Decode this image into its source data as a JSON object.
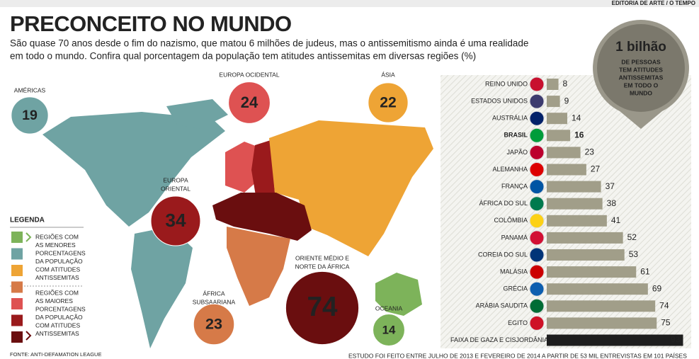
{
  "header": {
    "credit": "EDITORIA DE ARTE / O TEMPO",
    "title": "PRECONCEITO NO MUNDO",
    "subtitle": [
      "São quase 70 anos desde o fim do nazismo, que matou 6 milhões de judeus, mas o antissemitismo ainda é uma realidade",
      "em todo o mundo. Confira qual porcentagem da população tem atitudes antissemitas em diversas regiões (%)"
    ]
  },
  "regions": [
    {
      "name": [
        "AMÉRICAS"
      ],
      "value": 19,
      "color": "#6fa3a3"
    },
    {
      "name": [
        "EUROPA OCIDENTAL"
      ],
      "value": 24,
      "color": "#de5252"
    },
    {
      "name": [
        "ÁSIA"
      ],
      "value": 22,
      "color": "#eea435"
    },
    {
      "name": [
        "EUROPA",
        "ORIENTAL"
      ],
      "value": 34,
      "color": "#9a1a1c"
    },
    {
      "name": [
        "ORIENTE MÉDIO E",
        "NORTE DA ÁFRICA"
      ],
      "value": 74,
      "color": "#6a0e0f"
    },
    {
      "name": [
        "ÁFRICA",
        "SUBSAARIANA"
      ],
      "value": 23,
      "color": "#d67a48"
    },
    {
      "name": [
        "OCEANIA"
      ],
      "value": 14,
      "color": "#7db35a"
    }
  ],
  "callout": {
    "headline": "1 bilhão",
    "text": [
      "DE PESSOAS",
      "TEM ATITUDES",
      "ANTISSEMITAS",
      "EM TODO O",
      "MUNDO"
    ]
  },
  "legend": {
    "title": "LEGENDA",
    "colors": [
      "#7db35a",
      "#6fa3a3",
      "#eea435",
      "#d67a48",
      "#de5252",
      "#9a1a1c",
      "#6a0e0f"
    ],
    "groups": [
      [
        "REGIÕES COM",
        "AS MENORES",
        "PORCENTAGENS",
        "DA POPULAÇÃO",
        "COM ATITUDES",
        "ANTISSEMITAS"
      ],
      [
        "REGIÕES COM",
        "AS MAIORES",
        "PORCENTAGENS",
        "DA POPULAÇÃO",
        "COM ATITUDES",
        "ANTISSEMITAS"
      ]
    ]
  },
  "source": "FONTE: ANTI-DEFAMATION LEAGUE",
  "footnote": "ESTUDO FOI FEITO ENTRE JULHO DE 2013 E FEVEREIRO DE 2014 A PARTIR DE 53 MIL ENTREVISTAS EM 101 PAÍSES",
  "chart_data": {
    "type": "bar",
    "orientation": "horizontal",
    "categories": [
      "REINO UNIDO",
      "ESTADOS UNIDOS",
      "AUSTRÁLIA",
      "BRASIL",
      "JAPÃO",
      "ALEMANHA",
      "FRANÇA",
      "ÁFRICA DO SUL",
      "COLÔMBIA",
      "PANAMÁ",
      "COREIA DO SUL",
      "MALÁSIA",
      "GRÉCIA",
      "ARÁBIA SAUDITA",
      "EGITO",
      "FAIXA DE GAZA E CISJORDÂNIA"
    ],
    "values": [
      8,
      9,
      14,
      16,
      23,
      27,
      37,
      38,
      41,
      52,
      53,
      61,
      69,
      74,
      75,
      93
    ],
    "colors": [
      "#a19e89",
      "#a19e89",
      "#a19e89",
      "#a19e89",
      "#a19e89",
      "#a19e89",
      "#a19e89",
      "#a19e89",
      "#a19e89",
      "#a19e89",
      "#a19e89",
      "#a19e89",
      "#a19e89",
      "#a19e89",
      "#a19e89",
      "#1e1e1e"
    ]
  }
}
